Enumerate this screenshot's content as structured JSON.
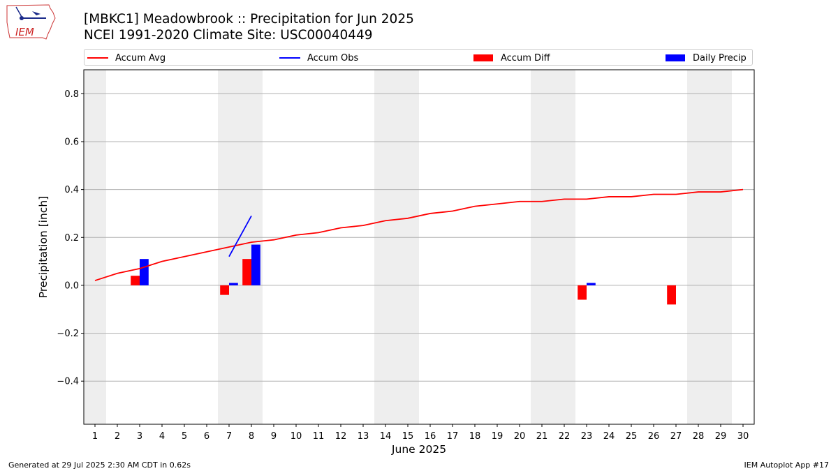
{
  "header": {
    "logo_text": "IEM",
    "title_line1": "[MBKC1] Meadowbrook :: Precipitation for Jun 2025",
    "title_line2": "NCEI 1991-2020 Climate Site: USC00040449"
  },
  "legend": {
    "accum_avg": "Accum Avg",
    "accum_obs": "Accum Obs",
    "accum_diff": "Accum Diff",
    "daily_precip": "Daily Precip"
  },
  "colors": {
    "accum_avg": "#ff0000",
    "accum_obs": "#0000ff",
    "accum_diff": "#ff0000",
    "daily_precip": "#0000ff",
    "weekend_shade": "#eeeeee",
    "grid": "#b0b0b0"
  },
  "chart_data": {
    "type": "bar",
    "xlabel": "June 2025",
    "ylabel": "Precipitation [inch]",
    "xlim": [
      0.5,
      30.5
    ],
    "ylim": [
      -0.58,
      0.9
    ],
    "grid": "horizontal",
    "legend_placement": "top",
    "x": [
      1,
      2,
      3,
      4,
      5,
      6,
      7,
      8,
      9,
      10,
      11,
      12,
      13,
      14,
      15,
      16,
      17,
      18,
      19,
      20,
      21,
      22,
      23,
      24,
      25,
      26,
      27,
      28,
      29,
      30
    ],
    "x_tick_labels": [
      "1",
      "2",
      "3",
      "4",
      "5",
      "6",
      "7",
      "8",
      "9",
      "10",
      "11",
      "12",
      "13",
      "14",
      "15",
      "16",
      "17",
      "18",
      "19",
      "20",
      "21",
      "22",
      "23",
      "24",
      "25",
      "26",
      "27",
      "28",
      "29",
      "30"
    ],
    "y_ticks": [
      -0.4,
      -0.2,
      0.0,
      0.2,
      0.4,
      0.6,
      0.8
    ],
    "y_tick_labels": [
      "−0.4",
      "−0.2",
      "0.0",
      "0.2",
      "0.4",
      "0.6",
      "0.8"
    ],
    "weekend_days": [
      1,
      7,
      8,
      14,
      15,
      21,
      22,
      28,
      29
    ],
    "series": [
      {
        "name": "Accum Avg",
        "kind": "line",
        "x": [
          1,
          2,
          3,
          4,
          5,
          6,
          7,
          8,
          9,
          10,
          11,
          12,
          13,
          14,
          15,
          16,
          17,
          18,
          19,
          20,
          21,
          22,
          23,
          24,
          25,
          26,
          27,
          28,
          29,
          30
        ],
        "values": [
          0.02,
          0.05,
          0.07,
          0.1,
          0.12,
          0.14,
          0.16,
          0.18,
          0.19,
          0.21,
          0.22,
          0.24,
          0.25,
          0.27,
          0.28,
          0.3,
          0.31,
          0.33,
          0.34,
          0.35,
          0.35,
          0.36,
          0.36,
          0.37,
          0.37,
          0.38,
          0.38,
          0.39,
          0.39,
          0.4
        ]
      },
      {
        "name": "Accum Obs",
        "kind": "line",
        "x": [
          7,
          8
        ],
        "values": [
          0.12,
          0.29
        ]
      },
      {
        "name": "Accum Diff",
        "kind": "bar",
        "x": [
          3,
          7,
          8,
          23,
          27
        ],
        "values": [
          0.04,
          -0.04,
          0.11,
          -0.06,
          -0.08
        ]
      },
      {
        "name": "Daily Precip",
        "kind": "bar",
        "x": [
          3,
          7,
          8,
          23
        ],
        "values": [
          0.11,
          0.01,
          0.17,
          0.01
        ]
      }
    ]
  },
  "footer": {
    "left": "Generated at 29 Jul 2025 2:30 AM CDT in 0.62s",
    "right": "IEM Autoplot App #17"
  }
}
